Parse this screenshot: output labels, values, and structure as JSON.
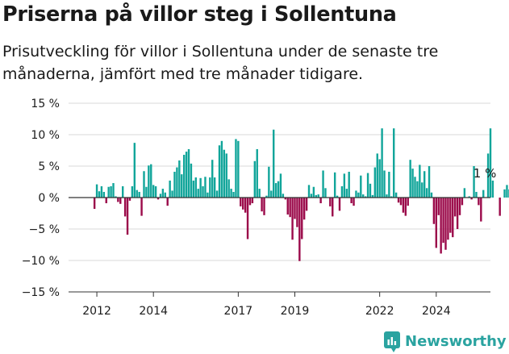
{
  "title": "Priserna på villor steg i Sollentuna",
  "subtitle": "Prisutveckling för villor i Sollentuna under de senaste tre månaderna, jämfört med tre månader tidigare.",
  "brand": {
    "name": "Newsworthy",
    "color": "#2aa3a0",
    "icon": "newsworthy-logo-icon"
  },
  "annotation": "1 %",
  "colors": {
    "positive": "#11a59a",
    "negative": "#9b0a4a",
    "grid": "#d9d9d9",
    "axis": "#333333"
  },
  "chart_data": {
    "type": "bar",
    "title": "Priserna på villor steg i Sollentuna",
    "subtitle": "Prisutveckling för villor i Sollentuna under de senaste tre månaderna, jämfört med tre månader tidigare.",
    "xlabel": "",
    "ylabel": "",
    "ylim": [
      -15,
      15
    ],
    "yticks": [
      15,
      10,
      5,
      0,
      -5,
      -10,
      -15
    ],
    "ytick_labels": [
      "15 %",
      "10 %",
      "5 %",
      "0 %",
      "−5 %",
      "−10 %",
      "−15 %"
    ],
    "xlim": [
      "2011-01",
      "2025-12"
    ],
    "xtick_labels": [
      "2012",
      "2014",
      "2017",
      "2019",
      "2022",
      "2024"
    ],
    "xtick_dates": [
      "2012-01",
      "2014-01",
      "2017-01",
      "2019-01",
      "2022-01",
      "2024-01"
    ],
    "grid": true,
    "unit": "%",
    "annotation": {
      "text": "1 %",
      "date": "2025-02"
    },
    "series": [
      {
        "start": "2011-12",
        "interval": "month",
        "values": [
          -1.8,
          2.1,
          1.0,
          1.8,
          0.9,
          -0.9,
          1.7,
          1.8,
          2.3,
          0.2,
          -0.7,
          -1.0,
          1.8,
          -3.0,
          -5.9,
          -0.5,
          1.8,
          8.7,
          1.2,
          0.9,
          -2.9,
          4.2,
          1.7,
          5.1,
          5.3,
          2.0,
          1.8,
          -0.3,
          0.6,
          1.4,
          0.8,
          -1.3,
          2.7,
          1.1,
          4.1,
          4.8,
          5.9,
          3.7,
          6.8,
          7.3,
          7.7,
          5.4,
          2.7,
          3.2,
          1.4,
          3.1,
          1.8,
          3.3,
          0.8,
          3.2,
          6.0,
          3.2,
          1.1,
          8.3,
          9.0,
          7.6,
          7.0,
          2.9,
          1.4,
          0.9,
          9.3,
          9.0,
          -1.4,
          -1.9,
          -2.4,
          -6.6,
          -1.2,
          -0.9,
          5.8,
          7.7,
          1.4,
          -2.2,
          -2.8,
          0.3,
          4.9,
          1.1,
          10.8,
          2.3,
          2.6,
          3.8,
          0.6,
          -0.3,
          -2.7,
          -3.1,
          -6.7,
          -3.4,
          -4.7,
          -10.1,
          -6.6,
          -3.5,
          -2.1,
          2.0,
          0.6,
          1.7,
          0.4,
          0.5,
          -0.9,
          4.3,
          1.5,
          0.0,
          -1.4,
          -3.0,
          4.0,
          0.3,
          -2.1,
          1.8,
          3.8,
          1.4,
          4.1,
          -0.9,
          -1.3,
          1.1,
          0.8,
          3.5,
          0.5,
          0.2,
          3.9,
          2.2,
          0.4,
          4.8,
          7.0,
          6.1,
          11.0,
          4.3,
          0.5,
          4.1,
          0.2,
          11.0,
          0.8,
          -0.8,
          -1.2,
          -2.4,
          -2.9,
          -1.3,
          6.0,
          4.6,
          3.3,
          2.6,
          5.2,
          2.4,
          4.2,
          1.5,
          5.0,
          0.8,
          -4.2,
          -8.0,
          -2.8,
          -8.9,
          -7.2,
          -8.3,
          -6.7,
          -5.6,
          -6.3,
          -3.0,
          -5.0,
          -2.8,
          -1.2,
          1.5,
          0.0,
          0.2,
          -0.3,
          5.0,
          0.9,
          -1.2,
          -3.8,
          1.2,
          0.0,
          7.0,
          11.0,
          2.7,
          0.0,
          0.0,
          -2.9,
          0.0,
          1.3,
          2.0,
          1.3,
          1.3,
          1.0
        ]
      }
    ]
  }
}
